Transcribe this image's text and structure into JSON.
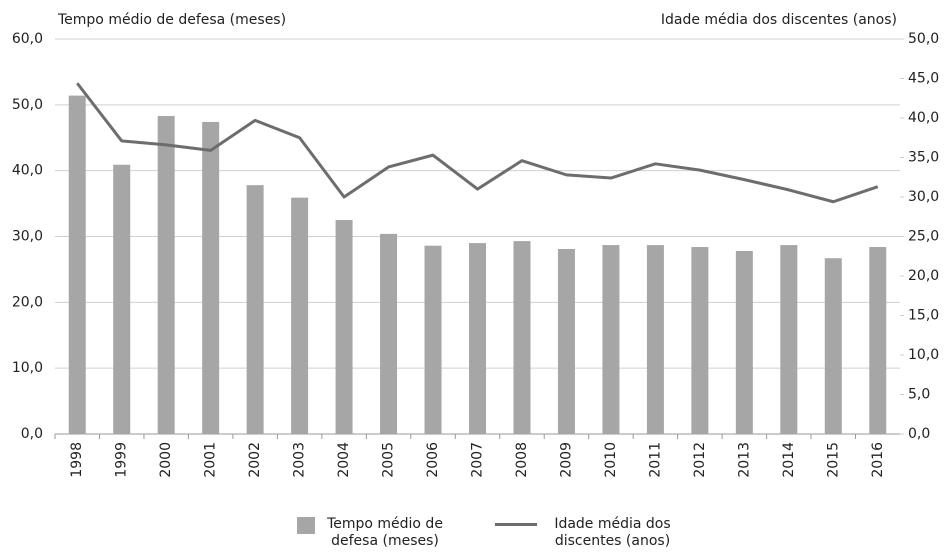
{
  "chart_data": {
    "type": "bar_line",
    "y_label": "Tempo médio de defesa (meses)",
    "y2_label": "Idade média dos discentes (anos)",
    "categories": [
      "1998",
      "1999",
      "2000",
      "2001",
      "2002",
      "2003",
      "2004",
      "2005",
      "2006",
      "2007",
      "2008",
      "2009",
      "2010",
      "2011",
      "2012",
      "2013",
      "2014",
      "2015",
      "2016"
    ],
    "series": [
      {
        "name": "Tempo médio de defesa (meses)",
        "color": "#a6a6a6",
        "type": "bar",
        "values": [
          51.4,
          40.9,
          48.3,
          47.4,
          37.8,
          35.9,
          32.5,
          30.4,
          28.6,
          29.0,
          29.3,
          28.1,
          28.7,
          28.7,
          28.4,
          27.8,
          28.7,
          26.7,
          28.4
        ]
      },
      {
        "name": "Idade média dos discentes (anos)",
        "color": "#6d6d6d",
        "type": "line",
        "axis": "y2",
        "values": [
          44.4,
          37.1,
          36.6,
          35.9,
          39.7,
          37.5,
          30.0,
          33.8,
          35.3,
          31.0,
          34.6,
          32.8,
          32.4,
          34.2,
          33.4,
          32.2,
          30.9,
          29.4,
          31.3
        ]
      }
    ],
    "ylim": [
      0,
      60
    ],
    "yticks": [
      {
        "value": 0,
        "label": "0,0"
      },
      {
        "value": 10,
        "label": "10,0"
      },
      {
        "value": 20,
        "label": "20,0"
      },
      {
        "value": 30,
        "label": "30,0"
      },
      {
        "value": 40,
        "label": "40,0"
      },
      {
        "value": 50,
        "label": "50,0"
      },
      {
        "value": 60,
        "label": "60,0"
      }
    ],
    "y2lim": [
      0,
      50
    ],
    "y2ticks": [
      {
        "value": 0,
        "label": "0,0"
      },
      {
        "value": 5,
        "label": "5,0"
      },
      {
        "value": 10,
        "label": "10,0"
      },
      {
        "value": 15,
        "label": "15,0"
      },
      {
        "value": 20,
        "label": "20,0"
      },
      {
        "value": 25,
        "label": "25,0"
      },
      {
        "value": 30,
        "label": "30,0"
      },
      {
        "value": 35,
        "label": "35,0"
      },
      {
        "value": 40,
        "label": "40,0"
      },
      {
        "value": 45,
        "label": "45,0"
      },
      {
        "value": 50,
        "label": "50,0"
      }
    ],
    "grid": true
  }
}
